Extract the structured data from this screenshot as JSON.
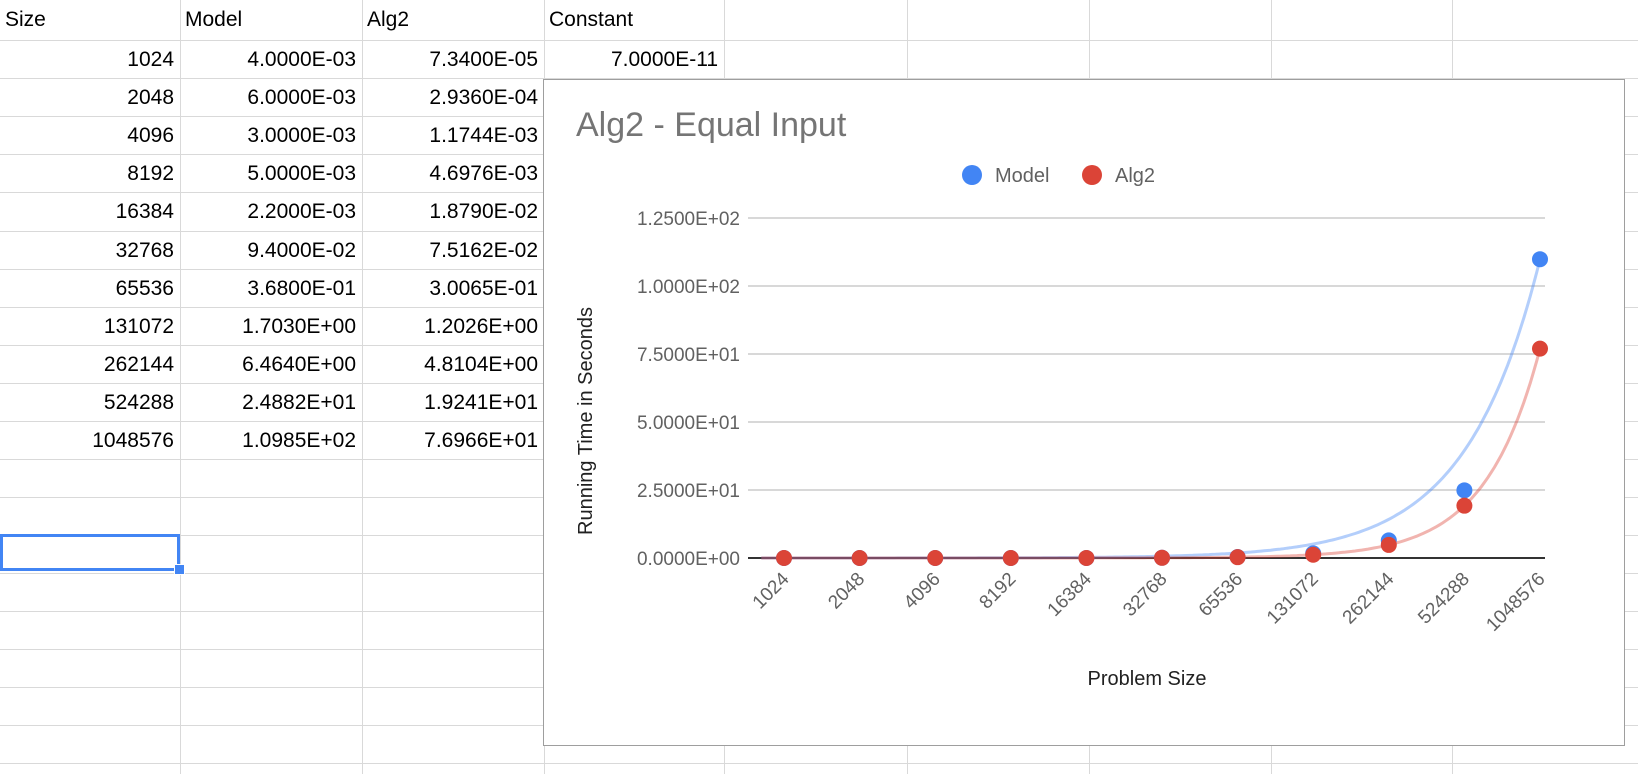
{
  "sheet": {
    "headers": [
      "Size",
      "Model",
      "Alg2",
      "Constant"
    ],
    "rows": [
      [
        "1024",
        "4.0000E-03",
        "7.3400E-05",
        "7.0000E-11"
      ],
      [
        "2048",
        "6.0000E-03",
        "2.9360E-04"
      ],
      [
        "4096",
        "3.0000E-03",
        "1.1744E-03"
      ],
      [
        "8192",
        "5.0000E-03",
        "4.6976E-03"
      ],
      [
        "16384",
        "2.2000E-03",
        "1.8790E-02"
      ],
      [
        "32768",
        "9.4000E-02",
        "7.5162E-02"
      ],
      [
        "65536",
        "3.6800E-01",
        "3.0065E-01"
      ],
      [
        "131072",
        "1.7030E+00",
        "1.2026E+00"
      ],
      [
        "262144",
        "6.4640E+00",
        "4.8104E+00"
      ],
      [
        "524288",
        "2.4882E+01",
        "1.9241E+01"
      ],
      [
        "1048576",
        "1.0985E+02",
        "7.6966E+01"
      ]
    ]
  },
  "chart_data": {
    "type": "scatter",
    "title": "Alg2 - Equal Input",
    "xlabel": "Problem Size",
    "ylabel": "Running Time in Seconds",
    "categories": [
      "1024",
      "2048",
      "4096",
      "8192",
      "16384",
      "32768",
      "65536",
      "131072",
      "262144",
      "524288",
      "1048576"
    ],
    "y_ticks": [
      "0.0000E+00",
      "2.5000E+01",
      "5.0000E+01",
      "7.5000E+01",
      "1.0000E+02",
      "1.2500E+02"
    ],
    "ylim": [
      0,
      125
    ],
    "grid": true,
    "legend_position": "top",
    "trendlines": true,
    "series": [
      {
        "name": "Model",
        "color": "#4285f4",
        "values": [
          0.004,
          0.006,
          0.003,
          0.005,
          0.0022,
          0.094,
          0.368,
          1.703,
          6.464,
          24.882,
          109.85
        ]
      },
      {
        "name": "Alg2",
        "color": "#db4437",
        "values": [
          7.34e-05,
          0.0002936,
          0.0011744,
          0.0046976,
          0.01879,
          0.075162,
          0.30065,
          1.2026,
          4.8104,
          19.241,
          76.966
        ]
      }
    ]
  }
}
